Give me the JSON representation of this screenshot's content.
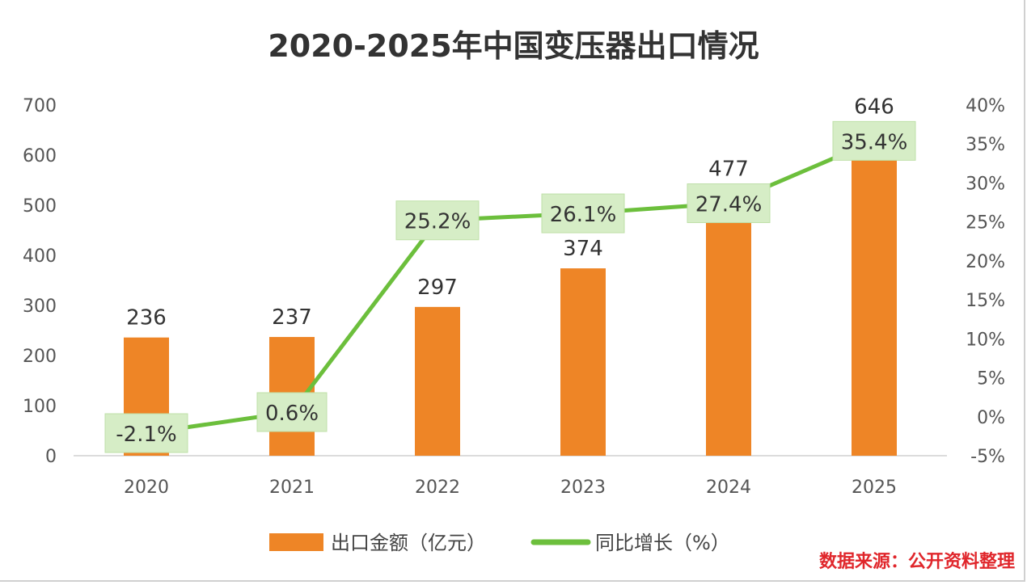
{
  "chart_data": {
    "type": "bar+line",
    "title": "2020-2025年中国变压器出口情况",
    "categories": [
      "2020",
      "2021",
      "2022",
      "2023",
      "2024",
      "2025"
    ],
    "series": [
      {
        "name": "出口金额（亿元）",
        "type": "bar",
        "axis": "left",
        "color": "#ee8526",
        "values": [
          236,
          237,
          297,
          374,
          477,
          646
        ]
      },
      {
        "name": "同比增长（%）",
        "type": "line",
        "axis": "right",
        "color": "#6cbf3c",
        "values": [
          -2.1,
          0.6,
          25.2,
          26.1,
          27.4,
          35.4
        ]
      }
    ],
    "y_left": {
      "min": 0,
      "max": 700,
      "ticks": [
        "0",
        "100",
        "200",
        "300",
        "400",
        "500",
        "600",
        "700"
      ]
    },
    "y_right": {
      "min": -5,
      "max": 40,
      "ticks": [
        "-5%",
        "0%",
        "5%",
        "10%",
        "15%",
        "20%",
        "25%",
        "30%",
        "35%",
        "40%"
      ]
    },
    "line_labels": [
      "-2.1%",
      "0.6%",
      "25.2%",
      "26.1%",
      "27.4%",
      "35.4%"
    ],
    "bar_labels": [
      "236",
      "237",
      "297",
      "374",
      "477",
      "646"
    ],
    "grid": false,
    "legend_position": "bottom",
    "label_box_color": "#d6edc6",
    "source_note": "数据来源：公开资料整理",
    "source_color": "#e0262b"
  }
}
